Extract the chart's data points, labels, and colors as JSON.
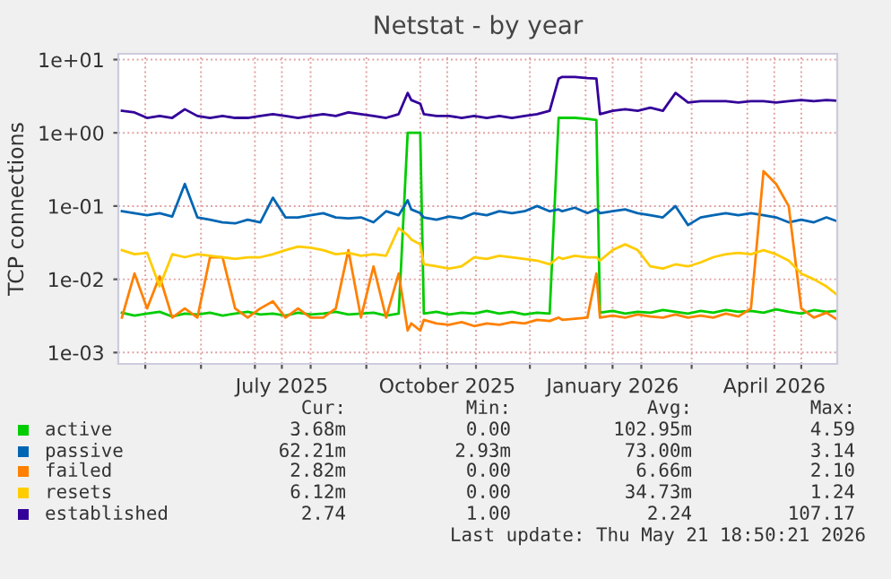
{
  "chart_data": {
    "type": "line",
    "title": "Netstat - by year",
    "ylabel": "TCP connections",
    "log": "y",
    "grid": true,
    "legend": "bottom",
    "xlim": [
      "2025-04-16",
      "2026-05-21"
    ],
    "xticks": [
      {
        "value": "2025-05-01",
        "label": null
      },
      {
        "value": "2025-06-01",
        "label": null
      },
      {
        "value": "2025-07-01",
        "label": null
      },
      {
        "value": "2025-07-16",
        "label": "July 2025"
      },
      {
        "value": "2025-08-01",
        "label": null
      },
      {
        "value": "2025-09-01",
        "label": null
      },
      {
        "value": "2025-10-01",
        "label": null
      },
      {
        "value": "2025-10-16",
        "label": "October 2025"
      },
      {
        "value": "2025-11-01",
        "label": null
      },
      {
        "value": "2025-12-01",
        "label": null
      },
      {
        "value": "2026-01-01",
        "label": null
      },
      {
        "value": "2026-01-16",
        "label": "January 2026"
      },
      {
        "value": "2026-02-01",
        "label": null
      },
      {
        "value": "2026-03-01",
        "label": null
      },
      {
        "value": "2026-04-01",
        "label": null
      },
      {
        "value": "2026-04-16",
        "label": "April 2026"
      },
      {
        "value": "2026-05-01",
        "label": null
      }
    ],
    "ylim": [
      0.0007,
      12
    ],
    "yticks": [
      {
        "value": 0.001,
        "label": "1e-03"
      },
      {
        "value": 0.01,
        "label": "1e-02"
      },
      {
        "value": 0.1,
        "label": "1e-01"
      },
      {
        "value": 1,
        "label": "1e+00"
      },
      {
        "value": 10,
        "label": "1e+01"
      }
    ],
    "x": [
      "2025-04-18",
      "2025-04-25",
      "2025-05-02",
      "2025-05-09",
      "2025-05-16",
      "2025-05-23",
      "2025-05-30",
      "2025-06-06",
      "2025-06-13",
      "2025-06-20",
      "2025-06-27",
      "2025-07-04",
      "2025-07-11",
      "2025-07-18",
      "2025-07-25",
      "2025-08-01",
      "2025-08-08",
      "2025-08-15",
      "2025-08-22",
      "2025-08-29",
      "2025-09-05",
      "2025-09-12",
      "2025-09-19",
      "2025-09-24",
      "2025-09-26",
      "2025-10-01",
      "2025-10-03",
      "2025-10-10",
      "2025-10-17",
      "2025-10-24",
      "2025-10-31",
      "2025-11-07",
      "2025-11-14",
      "2025-11-21",
      "2025-11-28",
      "2025-12-05",
      "2025-12-12",
      "2025-12-17",
      "2025-12-19",
      "2025-12-26",
      "2026-01-02",
      "2026-01-07",
      "2026-01-09",
      "2026-01-16",
      "2026-01-23",
      "2026-01-30",
      "2026-02-06",
      "2026-02-13",
      "2026-02-20",
      "2026-02-27",
      "2026-03-06",
      "2026-03-13",
      "2026-03-20",
      "2026-03-27",
      "2026-04-03",
      "2026-04-10",
      "2026-04-17",
      "2026-04-24",
      "2026-05-01",
      "2026-05-08",
      "2026-05-15",
      "2026-05-21"
    ],
    "series": [
      {
        "name": "active",
        "color": "#00cc00",
        "values": [
          0.0035,
          0.0032,
          0.0034,
          0.0036,
          0.0031,
          0.0034,
          0.0033,
          0.0035,
          0.0032,
          0.0034,
          0.0036,
          0.0033,
          0.0034,
          0.0032,
          0.0035,
          0.0033,
          0.0034,
          0.0036,
          0.0033,
          0.0034,
          0.0035,
          0.0032,
          0.0034,
          1.0,
          1.0,
          1.0,
          0.0034,
          0.0036,
          0.0033,
          0.0035,
          0.0034,
          0.0037,
          0.0034,
          0.0036,
          0.0033,
          0.0035,
          0.0034,
          1.6,
          1.6,
          1.6,
          1.55,
          1.5,
          0.0035,
          0.0037,
          0.0034,
          0.0036,
          0.0035,
          0.0038,
          0.0036,
          0.0034,
          0.0037,
          0.0035,
          0.0038,
          0.0036,
          0.0037,
          0.0035,
          0.0039,
          0.0036,
          0.0034,
          0.0038,
          0.0036,
          0.0037
        ]
      },
      {
        "name": "passive",
        "color": "#0066b3",
        "values": [
          0.085,
          0.08,
          0.075,
          0.08,
          0.072,
          0.2,
          0.07,
          0.065,
          0.06,
          0.058,
          0.065,
          0.06,
          0.13,
          0.07,
          0.07,
          0.075,
          0.08,
          0.07,
          0.068,
          0.07,
          0.06,
          0.085,
          0.075,
          0.12,
          0.09,
          0.08,
          0.07,
          0.065,
          0.072,
          0.068,
          0.08,
          0.075,
          0.085,
          0.08,
          0.085,
          0.1,
          0.085,
          0.09,
          0.085,
          0.095,
          0.08,
          0.09,
          0.08,
          0.085,
          0.09,
          0.08,
          0.075,
          0.07,
          0.1,
          0.055,
          0.07,
          0.075,
          0.08,
          0.075,
          0.08,
          0.075,
          0.07,
          0.06,
          0.065,
          0.06,
          0.07,
          0.062
        ]
      },
      {
        "name": "failed",
        "color": "#ff8000",
        "values": [
          0.003,
          0.012,
          0.004,
          0.011,
          0.003,
          0.004,
          0.003,
          0.02,
          0.02,
          0.004,
          0.003,
          0.004,
          0.005,
          0.003,
          0.004,
          0.003,
          0.003,
          0.004,
          0.025,
          0.003,
          0.015,
          0.003,
          0.012,
          0.002,
          0.0025,
          0.002,
          0.0028,
          0.0025,
          0.0024,
          0.0026,
          0.0023,
          0.0025,
          0.0024,
          0.0026,
          0.0025,
          0.0028,
          0.0027,
          0.003,
          0.0028,
          0.0029,
          0.003,
          0.012,
          0.003,
          0.0032,
          0.003,
          0.0033,
          0.0031,
          0.003,
          0.0033,
          0.003,
          0.0032,
          0.003,
          0.0034,
          0.0031,
          0.004,
          0.3,
          0.2,
          0.1,
          0.004,
          0.003,
          0.0035,
          0.00282
        ]
      },
      {
        "name": "resets",
        "color": "#ffcc00",
        "values": [
          0.025,
          0.022,
          0.023,
          0.008,
          0.022,
          0.02,
          0.022,
          0.021,
          0.02,
          0.019,
          0.02,
          0.02,
          0.022,
          0.025,
          0.028,
          0.027,
          0.025,
          0.022,
          0.023,
          0.021,
          0.022,
          0.021,
          0.05,
          0.04,
          0.035,
          0.03,
          0.016,
          0.015,
          0.014,
          0.015,
          0.02,
          0.019,
          0.021,
          0.02,
          0.019,
          0.018,
          0.016,
          0.02,
          0.019,
          0.021,
          0.02,
          0.02,
          0.018,
          0.025,
          0.03,
          0.025,
          0.015,
          0.014,
          0.016,
          0.015,
          0.017,
          0.02,
          0.022,
          0.023,
          0.022,
          0.025,
          0.022,
          0.018,
          0.012,
          0.01,
          0.008,
          0.00612
        ]
      },
      {
        "name": "established",
        "color": "#330099",
        "values": [
          2.0,
          1.9,
          1.6,
          1.7,
          1.6,
          2.1,
          1.7,
          1.6,
          1.7,
          1.6,
          1.6,
          1.7,
          1.8,
          1.7,
          1.6,
          1.7,
          1.8,
          1.7,
          1.9,
          1.8,
          1.7,
          1.6,
          1.8,
          3.5,
          2.8,
          2.5,
          1.8,
          1.7,
          1.7,
          1.6,
          1.7,
          1.6,
          1.7,
          1.6,
          1.7,
          1.8,
          2.0,
          5.5,
          5.8,
          5.8,
          5.6,
          5.5,
          1.8,
          2.0,
          2.1,
          2.0,
          2.2,
          2.0,
          3.5,
          2.6,
          2.7,
          2.7,
          2.7,
          2.6,
          2.7,
          2.7,
          2.6,
          2.7,
          2.8,
          2.7,
          2.8,
          2.74
        ]
      }
    ],
    "annotations": [
      "Cur:",
      "Min:",
      "Avg:",
      "Max:",
      "3.68m",
      "0.00",
      "102.95m",
      "4.59",
      "62.21m",
      "2.93m",
      "73.00m",
      "3.14",
      "2.82m",
      "0.00",
      "6.66m",
      "2.10",
      "6.12m",
      "0.00",
      "34.73m",
      "1.24",
      "2.74",
      "1.00",
      "2.24",
      "107.17",
      "Last update: Thu May 21 18:50:21 2026"
    ]
  }
}
